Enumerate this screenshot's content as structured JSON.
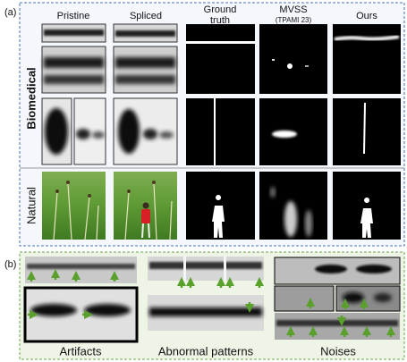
{
  "panel_a": {
    "label": "(a)",
    "columns": {
      "pristine": "Pristine",
      "spliced": "Spliced",
      "ground_truth": [
        "Ground",
        "truth"
      ],
      "mvss": {
        "name": "MVSS",
        "venue": "(TPAMI 23)"
      },
      "ours": "Ours"
    },
    "rows": [
      "Biomedical",
      "Natural"
    ]
  },
  "panel_b": {
    "label": "(b)",
    "captions": [
      "Artifacts",
      "Abnormal patterns",
      "Noises"
    ]
  }
}
